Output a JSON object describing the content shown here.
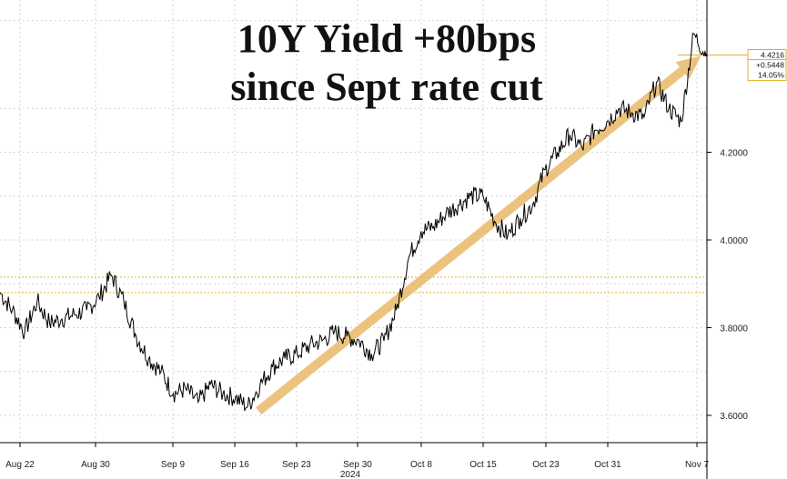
{
  "title": {
    "line1": "10Y Yield +80bps",
    "line2": "since Sept rate cut"
  },
  "chart_data": {
    "type": "line",
    "title": "10Y Yield +80bps since Sept rate cut",
    "ylim": [
      3.5,
      4.6
    ],
    "yticks": [
      "3.6000",
      "3.8000",
      "4.0000",
      "4.2000"
    ],
    "xticks": [
      "Aug 22",
      "Aug 30",
      "Sep 9",
      "Sep 16",
      "Sep 23",
      "Sep 30",
      "Oct 8",
      "Oct 15",
      "Oct 23",
      "Oct 31",
      "Nov 7"
    ],
    "xticks_sub": "2024",
    "grid": true,
    "series": [
      {
        "x": [
          "Aug 19",
          "Aug 20",
          "Aug 21",
          "Aug 22",
          "Aug 23",
          "Aug 26",
          "Aug 27",
          "Aug 28",
          "Aug 29",
          "Aug 30",
          "Sep 3",
          "Sep 4",
          "Sep 5",
          "Sep 6",
          "Sep 9",
          "Sep 10",
          "Sep 11",
          "Sep 12",
          "Sep 13",
          "Sep 16",
          "Sep 17",
          "Sep 18",
          "Sep 19",
          "Sep 20",
          "Sep 23",
          "Sep 24",
          "Sep 25",
          "Sep 26",
          "Sep 27",
          "Sep 30",
          "Oct 1",
          "Oct 2",
          "Oct 3",
          "Oct 4",
          "Oct 7",
          "Oct 8",
          "Oct 9",
          "Oct 10",
          "Oct 11",
          "Oct 14",
          "Oct 15",
          "Oct 16",
          "Oct 17",
          "Oct 18",
          "Oct 21",
          "Oct 22",
          "Oct 23",
          "Oct 24",
          "Oct 25",
          "Oct 28",
          "Oct 29",
          "Oct 30",
          "Oct 31",
          "Nov 1",
          "Nov 4",
          "Nov 5",
          "Nov 6",
          "Nov 7"
        ],
        "values": [
          3.88,
          3.84,
          3.79,
          3.86,
          3.81,
          3.82,
          3.83,
          3.84,
          3.87,
          3.92,
          3.86,
          3.78,
          3.73,
          3.7,
          3.65,
          3.66,
          3.63,
          3.67,
          3.65,
          3.64,
          3.62,
          3.67,
          3.71,
          3.73,
          3.74,
          3.76,
          3.77,
          3.79,
          3.78,
          3.77,
          3.74,
          3.77,
          3.84,
          3.96,
          4.02,
          4.03,
          4.06,
          4.08,
          4.1,
          4.1,
          4.04,
          4.01,
          4.05,
          4.08,
          4.16,
          4.2,
          4.24,
          4.21,
          4.25,
          4.27,
          4.3,
          4.29,
          4.28,
          4.36,
          4.3,
          4.27,
          4.47,
          4.4216
        ]
      }
    ],
    "reference_lines": [
      3.88,
      3.915,
      4.4216
    ],
    "arrow": {
      "from": [
        "Sep 17",
        3.61
      ],
      "to": [
        "Nov 6",
        4.42
      ]
    },
    "last_value_tag": [
      "4.4216",
      "+0.5448",
      "14.05%"
    ],
    "colors": {
      "line": "#000000",
      "arrow": "#e8b868",
      "reference": "#e0b020",
      "tag_border": "#e0b020"
    }
  }
}
